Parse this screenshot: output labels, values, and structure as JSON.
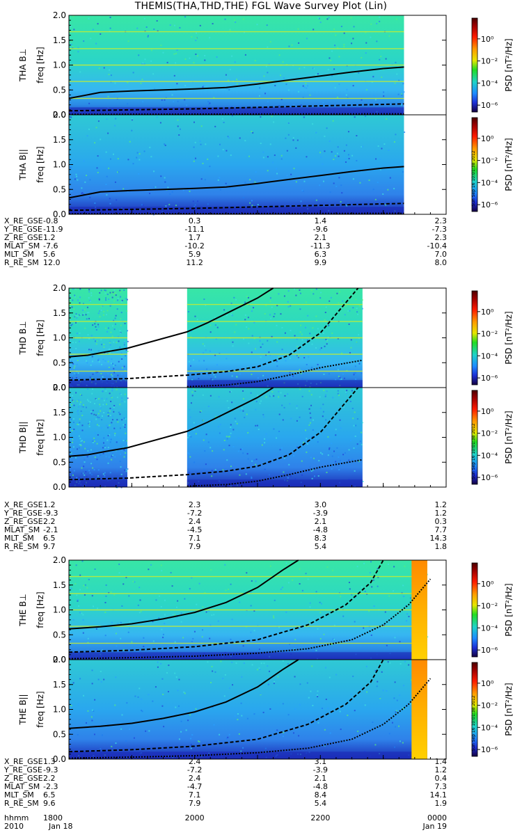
{
  "title": "THEMIS(THA,THD,THE) FGL Wave Survey Plot (Lin)",
  "colorbar": {
    "label": "PSD [nT²/Hz]",
    "ticks": [
      "10⁰",
      "10⁻²",
      "10⁻⁴",
      "10⁻⁶"
    ],
    "tick_exponents": [
      0,
      -2,
      -4,
      -6
    ]
  },
  "stamp": "Sun Sep 16 10:01:38 2012",
  "ephemeris_labels": [
    "X_RE_GSE",
    "Y_RE_GSE",
    "Z_RE_GSE",
    "MLAT_SM",
    "MLT_SM",
    "R_RE_SM"
  ],
  "time_axis": {
    "row_label_hhmm": "hhmm",
    "row_label_date": "2010",
    "hhmm": [
      "1800",
      "2000",
      "2200",
      "0000"
    ],
    "dates": [
      "Jan 18",
      "",
      "",
      "Jan 19"
    ]
  },
  "chart_data": [
    {
      "type": "heatmap",
      "probe": "THA",
      "panels": [
        {
          "ylabel_component": "THA B⊥",
          "ylabel_axis": "freq [Hz]",
          "stamp": false
        },
        {
          "ylabel_component": "THA B||",
          "ylabel_axis": "freq [Hz]",
          "stamp": true
        }
      ],
      "yticks": [
        "0.0",
        "0.5",
        "1.0",
        "1.5",
        "2.0"
      ],
      "ylim": [
        0,
        2.0
      ],
      "data_coverage_hours": [
        [
          18.0,
          23.33
        ]
      ],
      "curve_solid_hz": [
        [
          18.0,
          0.33
        ],
        [
          18.5,
          0.45
        ],
        [
          19.0,
          0.48
        ],
        [
          19.5,
          0.5
        ],
        [
          20.0,
          0.52
        ],
        [
          20.5,
          0.55
        ],
        [
          21.0,
          0.62
        ],
        [
          21.5,
          0.7
        ],
        [
          22.0,
          0.78
        ],
        [
          22.5,
          0.86
        ],
        [
          23.0,
          0.93
        ],
        [
          23.33,
          0.96
        ]
      ],
      "curve_dashed_hz": [
        [
          18.0,
          0.08
        ],
        [
          19.0,
          0.1
        ],
        [
          20.0,
          0.12
        ],
        [
          21.0,
          0.15
        ],
        [
          22.0,
          0.18
        ],
        [
          23.33,
          0.22
        ]
      ],
      "curve_dotted_hz": [
        [
          18.0,
          0.01
        ],
        [
          23.33,
          0.02
        ]
      ],
      "ephemeris": [
        [
          "-0.8",
          "0.3",
          "1.4",
          "2.3"
        ],
        [
          "-11.9",
          "-11.1",
          "-9.6",
          "-7.3"
        ],
        [
          "1.2",
          "1.7",
          "2.1",
          "2.3"
        ],
        [
          "-7.6",
          "-10.2",
          "-11.3",
          "-10.4"
        ],
        [
          "5.6",
          "5.9",
          "6.3",
          "7.0"
        ],
        [
          "12.0",
          "11.2",
          "9.9",
          "8.0"
        ]
      ]
    },
    {
      "type": "heatmap",
      "probe": "THD",
      "panels": [
        {
          "ylabel_component": "THD B⊥",
          "ylabel_axis": "freq [Hz]",
          "stamp": false
        },
        {
          "ylabel_component": "THD B||",
          "ylabel_axis": "freq [Hz]",
          "stamp": true
        }
      ],
      "yticks": [
        "0.0",
        "0.5",
        "1.0",
        "1.5",
        "2.0"
      ],
      "ylim": [
        0,
        2.0
      ],
      "data_coverage_hours": [
        [
          18.0,
          18.93
        ],
        [
          19.88,
          22.67
        ]
      ],
      "curve_solid_hz": [
        [
          18.0,
          0.62
        ],
        [
          18.3,
          0.65
        ],
        [
          18.6,
          0.72
        ],
        [
          18.93,
          0.79
        ],
        [
          19.88,
          1.12
        ],
        [
          20.2,
          1.3
        ],
        [
          20.6,
          1.55
        ],
        [
          21.0,
          1.8
        ],
        [
          21.25,
          2.0
        ]
      ],
      "curve_dashed_hz": [
        [
          18.0,
          0.15
        ],
        [
          18.93,
          0.18
        ],
        [
          19.88,
          0.25
        ],
        [
          20.5,
          0.32
        ],
        [
          21.0,
          0.42
        ],
        [
          21.5,
          0.65
        ],
        [
          22.0,
          1.1
        ],
        [
          22.3,
          1.55
        ],
        [
          22.6,
          2.0
        ]
      ],
      "curve_dotted_hz": [
        [
          19.88,
          0.02
        ],
        [
          20.5,
          0.05
        ],
        [
          21.0,
          0.12
        ],
        [
          21.5,
          0.25
        ],
        [
          22.0,
          0.4
        ],
        [
          22.67,
          0.55
        ]
      ],
      "ephemeris": [
        [
          "1.2",
          "2.3",
          "3.0",
          "1.2"
        ],
        [
          "-9.3",
          "-7.2",
          "-3.9",
          "1.2"
        ],
        [
          "2.2",
          "2.4",
          "2.1",
          "0.3"
        ],
        [
          "-2.1",
          "-4.5",
          "-4.8",
          "7.7"
        ],
        [
          "6.5",
          "7.1",
          "8.3",
          "14.3"
        ],
        [
          "9.7",
          "7.9",
          "5.4",
          "1.8"
        ]
      ]
    },
    {
      "type": "heatmap",
      "probe": "THE",
      "panels": [
        {
          "ylabel_component": "THE B⊥",
          "ylabel_axis": "freq [Hz]",
          "stamp": false
        },
        {
          "ylabel_component": "THE B||",
          "ylabel_axis": "freq [Hz]",
          "stamp": true
        }
      ],
      "yticks": [
        "0.0",
        "0.5",
        "1.0",
        "1.5",
        "2.0"
      ],
      "ylim": [
        0,
        2.0
      ],
      "data_coverage_hours": [
        [
          18.0,
          23.7
        ]
      ],
      "high_power_band_hours": [
        23.45,
        23.7
      ],
      "curve_solid_hz": [
        [
          18.0,
          0.62
        ],
        [
          18.5,
          0.66
        ],
        [
          19.0,
          0.72
        ],
        [
          19.5,
          0.82
        ],
        [
          20.0,
          0.95
        ],
        [
          20.5,
          1.15
        ],
        [
          21.0,
          1.45
        ],
        [
          21.4,
          1.8
        ],
        [
          21.65,
          2.0
        ]
      ],
      "curve_dashed_hz": [
        [
          18.0,
          0.15
        ],
        [
          19.0,
          0.19
        ],
        [
          20.0,
          0.26
        ],
        [
          21.0,
          0.4
        ],
        [
          21.8,
          0.7
        ],
        [
          22.4,
          1.1
        ],
        [
          22.8,
          1.55
        ],
        [
          23.0,
          2.0
        ]
      ],
      "curve_dotted_hz": [
        [
          18.0,
          0.02
        ],
        [
          19.0,
          0.04
        ],
        [
          20.0,
          0.07
        ],
        [
          21.0,
          0.13
        ],
        [
          21.8,
          0.22
        ],
        [
          22.5,
          0.4
        ],
        [
          23.0,
          0.7
        ],
        [
          23.4,
          1.1
        ],
        [
          23.75,
          1.62
        ]
      ],
      "ephemeris": [
        [
          "1.3",
          "2.4",
          "3.1",
          "1.4"
        ],
        [
          "-9.3",
          "-7.2",
          "-3.9",
          "1.2"
        ],
        [
          "2.2",
          "2.4",
          "2.1",
          "0.4"
        ],
        [
          "-2.3",
          "-4.7",
          "-4.8",
          "7.3"
        ],
        [
          "6.5",
          "7.1",
          "8.4",
          "14.1"
        ],
        [
          "9.6",
          "7.9",
          "5.4",
          "1.9"
        ]
      ]
    }
  ]
}
